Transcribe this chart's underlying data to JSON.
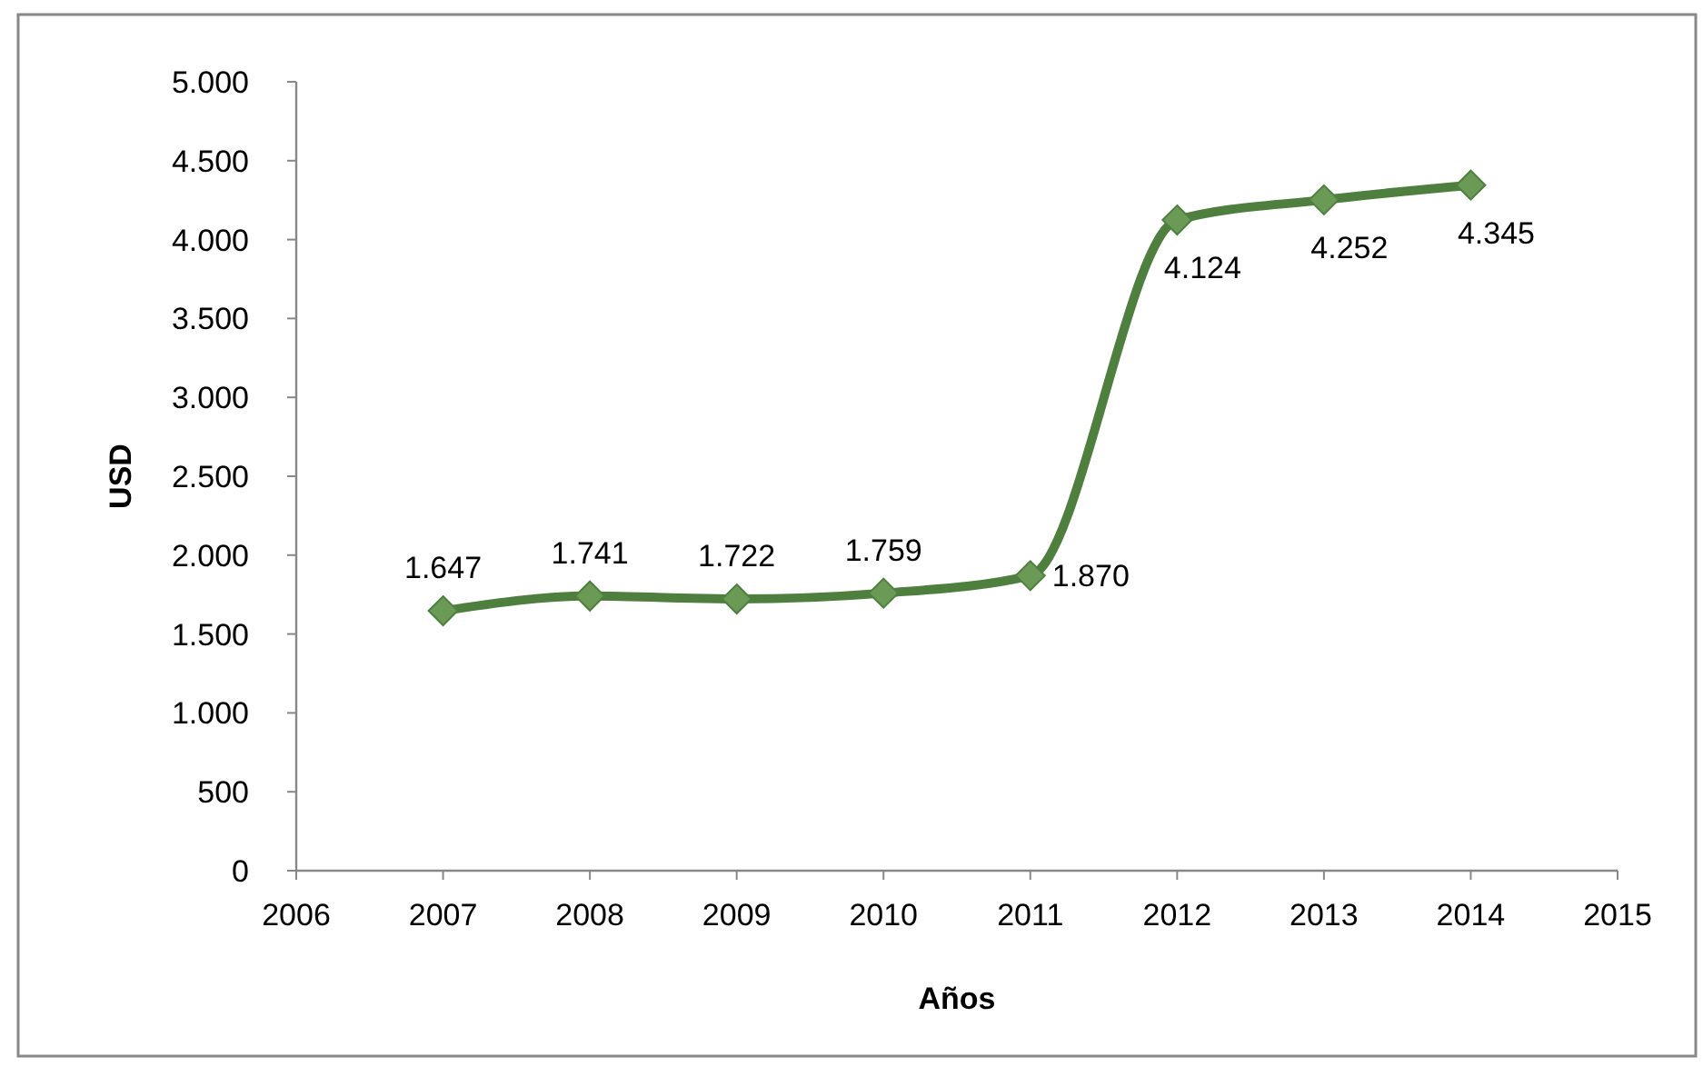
{
  "chart_data": {
    "type": "line",
    "xlabel": "Años",
    "ylabel": "USD",
    "x": [
      2007,
      2008,
      2009,
      2010,
      2011,
      2012,
      2013,
      2014
    ],
    "series": [
      {
        "color": "#4f7f3f",
        "values": [
          1647,
          1741,
          1722,
          1759,
          1870,
          4124,
          4252,
          4345
        ],
        "value_labels": [
          "1.647",
          "1.741",
          "1.722",
          "1.759",
          "1.870",
          "4.124",
          "4.252",
          "4.345"
        ]
      }
    ],
    "xlim": [
      2006,
      2015
    ],
    "xticks": [
      2006,
      2007,
      2008,
      2009,
      2010,
      2011,
      2012,
      2013,
      2014,
      2015
    ],
    "ylim": [
      0,
      5000
    ],
    "yticks": [
      0,
      500,
      {
        "value": 1000,
        "label": "1.000"
      },
      {
        "value": 1500,
        "label": "1.500"
      },
      {
        "value": 2000,
        "label": "2.000"
      },
      {
        "value": 2500,
        "label": "2.500"
      },
      {
        "value": 3000,
        "label": "3.000"
      },
      {
        "value": 3500,
        "label": "3.500"
      },
      {
        "value": 4000,
        "label": "4.000"
      },
      {
        "value": 4500,
        "label": "4.500"
      },
      {
        "value": 5000,
        "label": "5.000"
      }
    ],
    "marker": "diamond",
    "line_style": "solid",
    "grid": false
  }
}
